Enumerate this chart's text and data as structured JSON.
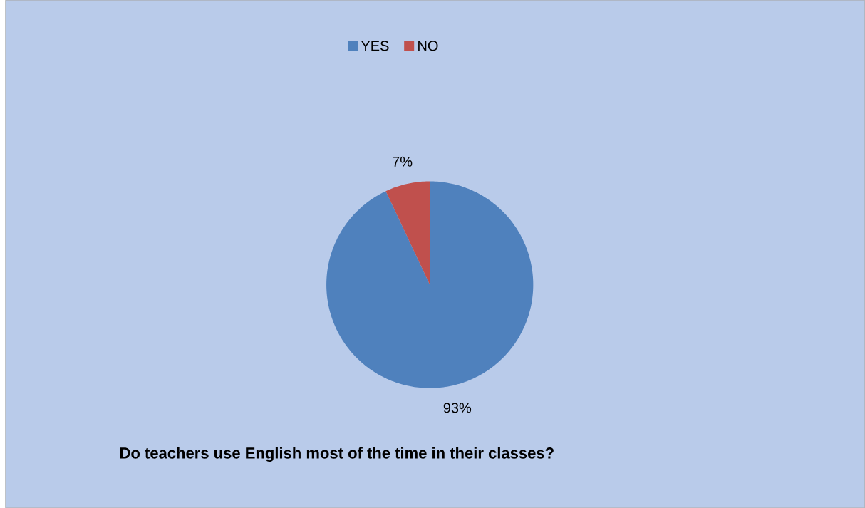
{
  "chart_data": {
    "type": "pie",
    "title": "Do teachers use English most of the time in their classes?",
    "categories": [
      "YES",
      "NO"
    ],
    "values": [
      93,
      7
    ],
    "colors": [
      "#4f81bd",
      "#c0504d"
    ],
    "value_labels": [
      "93%",
      "7%"
    ],
    "legend": "top"
  }
}
